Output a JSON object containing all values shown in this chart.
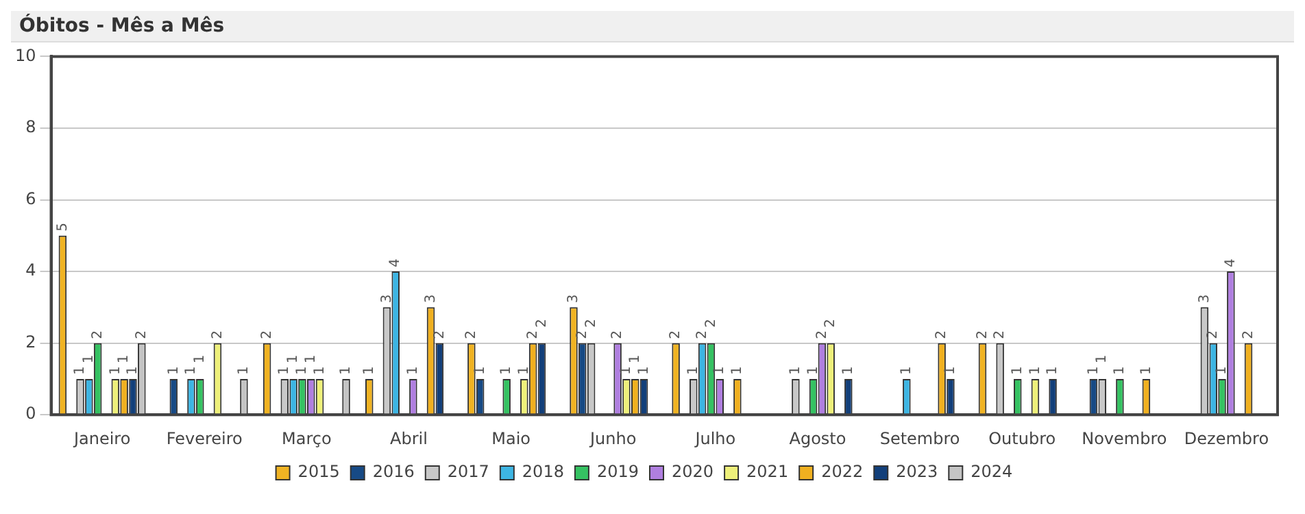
{
  "chart_data": {
    "type": "bar",
    "title": "Óbitos - Mês a Mês",
    "categories": [
      "Janeiro",
      "Fevereiro",
      "Março",
      "Abril",
      "Maio",
      "Junho",
      "Julho",
      "Agosto",
      "Setembro",
      "Outubro",
      "Novembro",
      "Dezembro"
    ],
    "series": [
      {
        "name": "2015",
        "color": "#f0b323",
        "values": [
          5,
          null,
          2,
          1,
          2,
          3,
          2,
          null,
          null,
          2,
          null,
          null
        ]
      },
      {
        "name": "2016",
        "color": "#174a85",
        "values": [
          null,
          1,
          null,
          null,
          1,
          2,
          null,
          null,
          null,
          null,
          1,
          null
        ]
      },
      {
        "name": "2017",
        "color": "#c8c8c8",
        "values": [
          1,
          null,
          1,
          3,
          null,
          2,
          1,
          1,
          null,
          2,
          1,
          3
        ]
      },
      {
        "name": "2018",
        "color": "#3db5e3",
        "values": [
          1,
          1,
          1,
          4,
          null,
          null,
          2,
          null,
          1,
          null,
          null,
          2
        ]
      },
      {
        "name": "2019",
        "color": "#35c262",
        "values": [
          2,
          1,
          1,
          null,
          1,
          null,
          2,
          1,
          null,
          1,
          1,
          1
        ]
      },
      {
        "name": "2020",
        "color": "#b07fe0",
        "values": [
          null,
          null,
          1,
          1,
          null,
          2,
          1,
          2,
          null,
          null,
          null,
          4
        ]
      },
      {
        "name": "2021",
        "color": "#eef07a",
        "values": [
          1,
          2,
          1,
          null,
          1,
          1,
          null,
          2,
          null,
          1,
          null,
          null
        ]
      },
      {
        "name": "2022",
        "color": "#f0b020",
        "values": [
          1,
          null,
          null,
          3,
          2,
          1,
          1,
          null,
          2,
          null,
          1,
          2
        ]
      },
      {
        "name": "2023",
        "color": "#123f7a",
        "values": [
          1,
          null,
          null,
          2,
          2,
          1,
          null,
          1,
          1,
          1,
          null,
          null
        ]
      },
      {
        "name": "2024",
        "color": "#c4c4c4",
        "values": [
          2,
          1,
          1,
          null,
          null,
          null,
          null,
          null,
          null,
          null,
          null,
          null
        ]
      }
    ],
    "ylim": [
      0,
      10
    ],
    "yticks": [
      0,
      2,
      4,
      6,
      8,
      10
    ],
    "grid": "y",
    "legend": "bottom",
    "data_labels": true
  }
}
